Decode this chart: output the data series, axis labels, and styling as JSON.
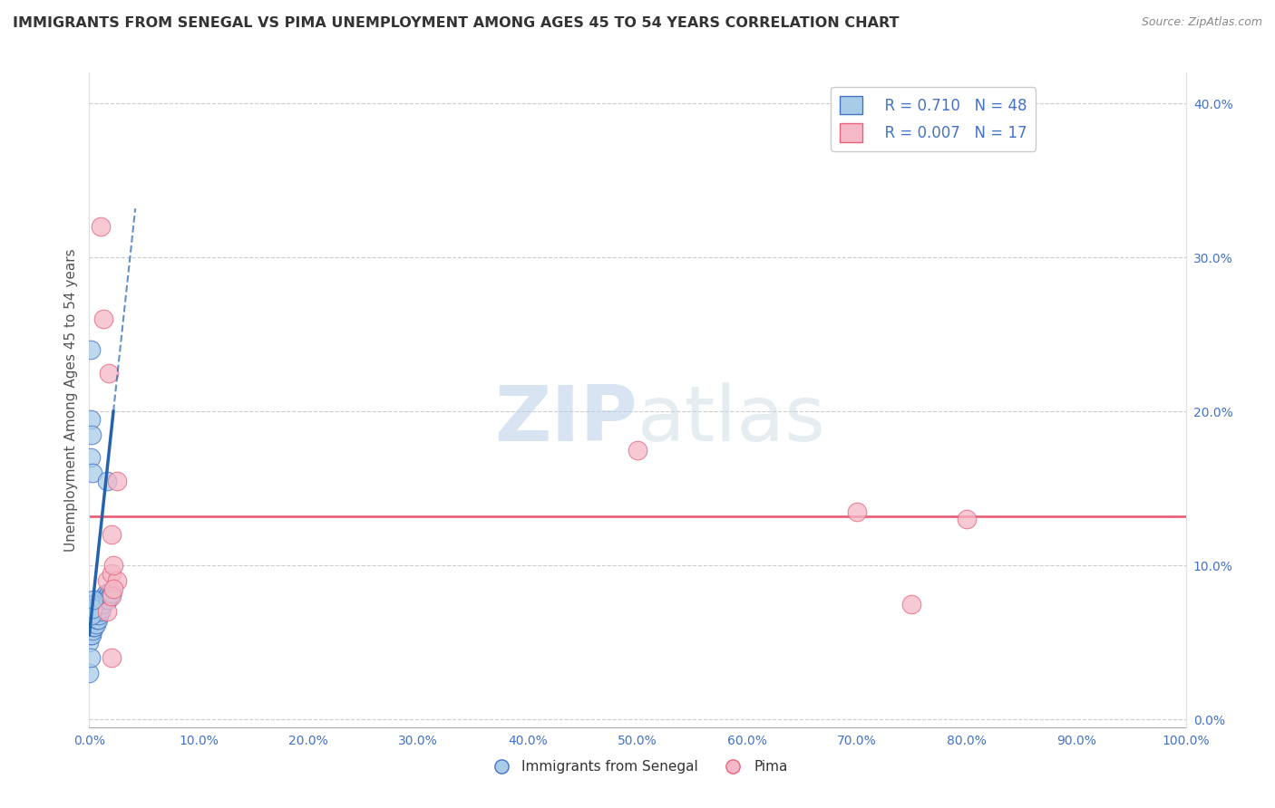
{
  "title": "IMMIGRANTS FROM SENEGAL VS PIMA UNEMPLOYMENT AMONG AGES 45 TO 54 YEARS CORRELATION CHART",
  "source": "Source: ZipAtlas.com",
  "ylabel": "Unemployment Among Ages 45 to 54 years",
  "xlim": [
    0,
    1.0
  ],
  "ylim": [
    -0.005,
    0.42
  ],
  "xticks": [
    0.0,
    0.1,
    0.2,
    0.3,
    0.4,
    0.5,
    0.6,
    0.7,
    0.8,
    0.9,
    1.0
  ],
  "xtick_labels": [
    "0.0%",
    "10.0%",
    "20.0%",
    "30.0%",
    "40.0%",
    "50.0%",
    "60.0%",
    "70.0%",
    "80.0%",
    "90.0%",
    "100.0%"
  ],
  "yticks": [
    0.0,
    0.1,
    0.2,
    0.3,
    0.4
  ],
  "ytick_labels_right": [
    "0.0%",
    "10.0%",
    "20.0%",
    "30.0%",
    "40.0%"
  ],
  "blue_R": "0.710",
  "blue_N": "48",
  "pink_R": "0.007",
  "pink_N": "17",
  "blue_color": "#a8cce8",
  "pink_color": "#f4b8c8",
  "blue_edge_color": "#4472c4",
  "pink_edge_color": "#e8637a",
  "blue_line_color": "#2563ae",
  "pink_line_color": "#e8637a",
  "legend_label_blue": "Immigrants from Senegal",
  "legend_label_pink": "Pima",
  "watermark_zip": "ZIP",
  "watermark_atlas": "atlas",
  "grid_color": "#cccccc",
  "background_color": "#ffffff",
  "blue_scatter_x": [
    0.0,
    0.0,
    0.0,
    0.001,
    0.001,
    0.002,
    0.002,
    0.002,
    0.002,
    0.003,
    0.003,
    0.003,
    0.004,
    0.004,
    0.005,
    0.005,
    0.005,
    0.006,
    0.006,
    0.007,
    0.007,
    0.008,
    0.008,
    0.009,
    0.009,
    0.01,
    0.01,
    0.011,
    0.012,
    0.013,
    0.014,
    0.015,
    0.016,
    0.017,
    0.018,
    0.019,
    0.02,
    0.0,
    0.001,
    0.002,
    0.003,
    0.004,
    0.001,
    0.001,
    0.001,
    0.002,
    0.003,
    0.016
  ],
  "blue_scatter_y": [
    0.05,
    0.06,
    0.07,
    0.055,
    0.065,
    0.055,
    0.06,
    0.065,
    0.075,
    0.058,
    0.062,
    0.07,
    0.06,
    0.068,
    0.06,
    0.068,
    0.075,
    0.062,
    0.07,
    0.065,
    0.072,
    0.065,
    0.072,
    0.068,
    0.075,
    0.07,
    0.078,
    0.072,
    0.075,
    0.078,
    0.08,
    0.082,
    0.08,
    0.078,
    0.082,
    0.08,
    0.082,
    0.03,
    0.04,
    0.068,
    0.072,
    0.078,
    0.195,
    0.24,
    0.17,
    0.185,
    0.16,
    0.155
  ],
  "pink_scatter_x": [
    0.01,
    0.013,
    0.018,
    0.025,
    0.02,
    0.016,
    0.02,
    0.025,
    0.5,
    0.7,
    0.75,
    0.8,
    0.016,
    0.02,
    0.022,
    0.02,
    0.022
  ],
  "pink_scatter_y": [
    0.32,
    0.26,
    0.225,
    0.155,
    0.12,
    0.09,
    0.095,
    0.09,
    0.175,
    0.135,
    0.075,
    0.13,
    0.07,
    0.08,
    0.085,
    0.04,
    0.1
  ],
  "pink_trend_y": 0.132,
  "blue_trend_x0": 0.0,
  "blue_trend_y0": 0.055,
  "blue_trend_x1": 0.022,
  "blue_trend_y1": 0.2
}
